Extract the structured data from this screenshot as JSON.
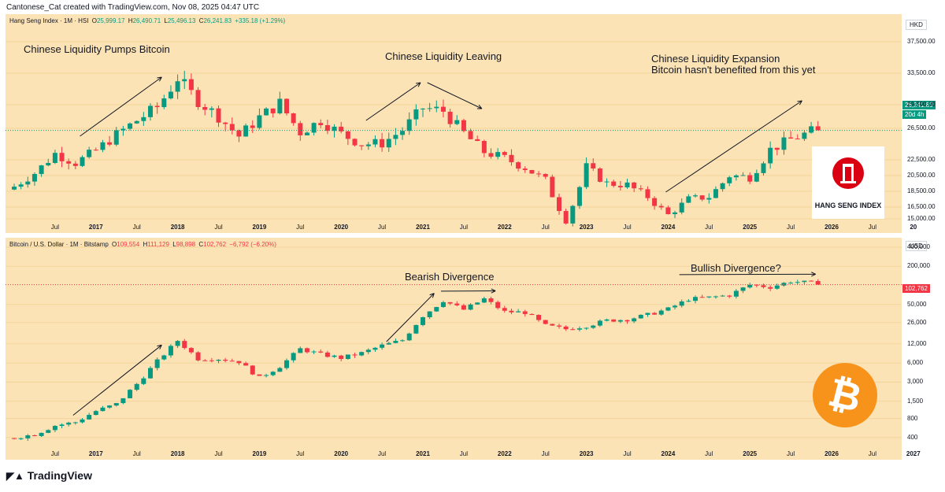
{
  "header": "Cantonese_Cat created with TradingView.com, Nov 08, 2025 04:47 UTC",
  "footer": {
    "logo_text": "TradingView",
    "logo_icon": "tradingview-icon"
  },
  "colors": {
    "up": "#089981",
    "down": "#f23645",
    "pane_bg": "#fce3b6"
  },
  "top_pane": {
    "symbol": "Hang Seng Index · 1M · HSI",
    "ohlc": {
      "o_label": "O",
      "o": "25,999.17",
      "h_label": "H",
      "h": "26,490.71",
      "l_label": "L",
      "l": "25,496.13",
      "c_label": "C",
      "c": "26,241.83",
      "change": "+335.18 (+1.29%)"
    },
    "currency": "HKD",
    "last_price": "26,241.83",
    "countdown": "20d 4h",
    "logo_text": "HANG SENG INDEX",
    "logo_icon": "hang-seng-bank-icon",
    "annotations": {
      "a1": "Chinese Liquidity Pumps Bitcoin",
      "a2": "Chinese Liquidity Leaving",
      "a3_line1": "Chinese Liquidity Expansion",
      "a3_line2": "Bitcoin hasn't benefited from this yet"
    },
    "x_ticks": [
      "Jul",
      "2017",
      "Jul",
      "2018",
      "Jul",
      "2019",
      "Jul",
      "2020",
      "Jul",
      "2021",
      "Jul",
      "2022",
      "Jul",
      "2023",
      "Jul",
      "2024",
      "Jul",
      "2025",
      "Jul",
      "2026",
      "Jul",
      "20"
    ]
  },
  "bottom_pane": {
    "symbol": "Bitcoin / U.S. Dollar · 1M · Bitstamp",
    "ohlc": {
      "o_label": "O",
      "o": "109,554",
      "h_label": "H",
      "h": "111,129",
      "l_label": "L",
      "l": "98,898",
      "c_label": "C",
      "c": "102,762",
      "change": "−6,792 (−6.20%)"
    },
    "currency": "USD",
    "last_price": "102,762",
    "logo_icon": "bitcoin-icon",
    "annotations": {
      "b1": "Bearish Divergence",
      "b2": "Bullish Divergence?"
    },
    "x_ticks": [
      "Jul",
      "2017",
      "Jul",
      "2018",
      "Jul",
      "2019",
      "Jul",
      "2020",
      "Jul",
      "2021",
      "Jul",
      "2022",
      "Jul",
      "2023",
      "Jul",
      "2024",
      "Jul",
      "2025",
      "Jul",
      "2026",
      "Jul",
      "2027"
    ]
  },
  "chart_data": [
    {
      "type": "candlestick",
      "title": "Hang Seng Index · 1M · HSI",
      "currency": "HKD",
      "x_range": [
        "2016-01",
        "2027-01"
      ],
      "ylim": [
        14000,
        40000
      ],
      "y_ticks": [
        "15,000.00",
        "16,500.00",
        "18,500.00",
        "20,500.00",
        "22,500.00",
        "26,500.00",
        "29,500.00",
        "33,500.00",
        "37,500.00"
      ],
      "closes_quarterly": [
        {
          "t": "2016-01",
          "v": 19100
        },
        {
          "t": "2016-04",
          "v": 20800
        },
        {
          "t": "2016-07",
          "v": 23300
        },
        {
          "t": "2016-10",
          "v": 22100
        },
        {
          "t": "2017-01",
          "v": 23700
        },
        {
          "t": "2017-04",
          "v": 25700
        },
        {
          "t": "2017-07",
          "v": 27500
        },
        {
          "t": "2017-10",
          "v": 29200
        },
        {
          "t": "2018-01",
          "v": 32900
        },
        {
          "t": "2018-04",
          "v": 30000
        },
        {
          "t": "2018-07",
          "v": 28000
        },
        {
          "t": "2018-10",
          "v": 25500
        },
        {
          "t": "2019-01",
          "v": 27900
        },
        {
          "t": "2019-04",
          "v": 29700
        },
        {
          "t": "2019-07",
          "v": 26000
        },
        {
          "t": "2019-10",
          "v": 27500
        },
        {
          "t": "2020-01",
          "v": 25800
        },
        {
          "t": "2020-04",
          "v": 24500
        },
        {
          "t": "2020-07",
          "v": 24600
        },
        {
          "t": "2020-10",
          "v": 26300
        },
        {
          "t": "2021-01",
          "v": 29100
        },
        {
          "t": "2021-04",
          "v": 28700
        },
        {
          "t": "2021-07",
          "v": 25900
        },
        {
          "t": "2021-10",
          "v": 23500
        },
        {
          "t": "2022-01",
          "v": 22700
        },
        {
          "t": "2022-04",
          "v": 21500
        },
        {
          "t": "2022-07",
          "v": 19900
        },
        {
          "t": "2022-10",
          "v": 14800
        },
        {
          "t": "2023-01",
          "v": 21600
        },
        {
          "t": "2023-04",
          "v": 19500
        },
        {
          "t": "2023-07",
          "v": 19300
        },
        {
          "t": "2023-10",
          "v": 17800
        },
        {
          "t": "2024-01",
          "v": 15500
        },
        {
          "t": "2024-04",
          "v": 17500
        },
        {
          "t": "2024-07",
          "v": 17800
        },
        {
          "t": "2024-10",
          "v": 20500
        },
        {
          "t": "2025-01",
          "v": 20300
        },
        {
          "t": "2025-04",
          "v": 23800
        },
        {
          "t": "2025-07",
          "v": 25100
        },
        {
          "t": "2025-10",
          "v": 26100
        },
        {
          "t": "2025-11",
          "v": 26242
        }
      ]
    },
    {
      "type": "candlestick",
      "title": "Bitcoin / U.S. Dollar · 1M · Bitstamp",
      "currency": "USD",
      "scale": "log",
      "x_range": [
        "2016-01",
        "2027-01"
      ],
      "ylim": [
        300,
        400000
      ],
      "y_ticks": [
        "400",
        "800",
        "1,500",
        "3,000",
        "6,000",
        "12,000",
        "26,000",
        "50,000",
        "200,000",
        "400,000"
      ],
      "closes_quarterly": [
        {
          "t": "2016-01",
          "v": 400
        },
        {
          "t": "2016-04",
          "v": 450
        },
        {
          "t": "2016-07",
          "v": 620
        },
        {
          "t": "2016-10",
          "v": 700
        },
        {
          "t": "2017-01",
          "v": 1050
        },
        {
          "t": "2017-04",
          "v": 1350
        },
        {
          "t": "2017-07",
          "v": 2800
        },
        {
          "t": "2017-10",
          "v": 6400
        },
        {
          "t": "2018-01",
          "v": 13500
        },
        {
          "t": "2018-04",
          "v": 7000
        },
        {
          "t": "2018-07",
          "v": 7000
        },
        {
          "t": "2018-10",
          "v": 6300
        },
        {
          "t": "2019-01",
          "v": 3500
        },
        {
          "t": "2019-04",
          "v": 5300
        },
        {
          "t": "2019-07",
          "v": 10000
        },
        {
          "t": "2019-10",
          "v": 8200
        },
        {
          "t": "2020-01",
          "v": 7200
        },
        {
          "t": "2020-04",
          "v": 8600
        },
        {
          "t": "2020-07",
          "v": 11300
        },
        {
          "t": "2020-10",
          "v": 13700
        },
        {
          "t": "2021-01",
          "v": 33100
        },
        {
          "t": "2021-04",
          "v": 57700
        },
        {
          "t": "2021-07",
          "v": 41500
        },
        {
          "t": "2021-10",
          "v": 61300
        },
        {
          "t": "2022-01",
          "v": 38500
        },
        {
          "t": "2022-04",
          "v": 37600
        },
        {
          "t": "2022-07",
          "v": 23300
        },
        {
          "t": "2022-10",
          "v": 20500
        },
        {
          "t": "2023-01",
          "v": 23100
        },
        {
          "t": "2023-04",
          "v": 28000
        },
        {
          "t": "2023-07",
          "v": 29200
        },
        {
          "t": "2023-10",
          "v": 34500
        },
        {
          "t": "2024-01",
          "v": 42500
        },
        {
          "t": "2024-04",
          "v": 60600
        },
        {
          "t": "2024-07",
          "v": 64600
        },
        {
          "t": "2024-10",
          "v": 70300
        },
        {
          "t": "2025-01",
          "v": 102400
        },
        {
          "t": "2025-04",
          "v": 94200
        },
        {
          "t": "2025-07",
          "v": 115700
        },
        {
          "t": "2025-10",
          "v": 109500
        },
        {
          "t": "2025-11",
          "v": 102762
        }
      ]
    }
  ]
}
